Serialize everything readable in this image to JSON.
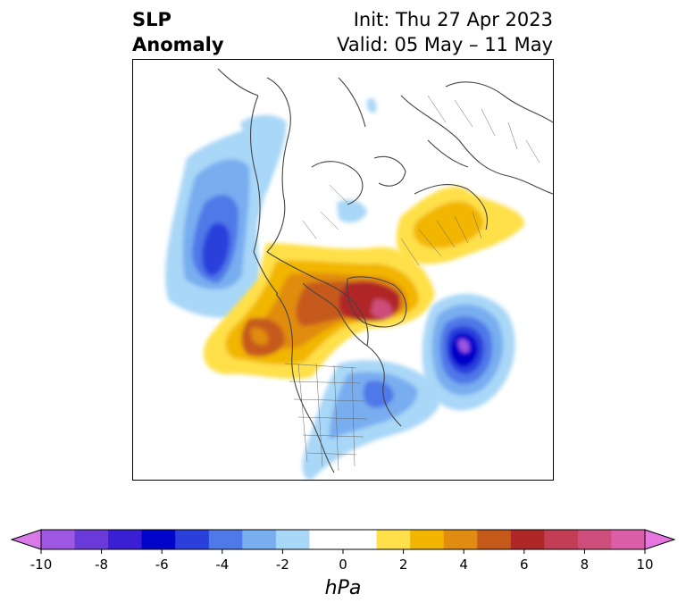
{
  "header": {
    "title_lines": [
      "SLP",
      "Anomaly"
    ],
    "init_text": "Init: Thu 27 Apr 2023",
    "valid_text": "Valid: 05 May – 11 May"
  },
  "colorbar": {
    "ticks": [
      "-10",
      "-8",
      "-6",
      "-4",
      "-2",
      "0",
      "2",
      "4",
      "6",
      "8",
      "10"
    ],
    "units": "hPa",
    "under_color": "#d97ae8",
    "over_color": "#e675df",
    "bin_colors": [
      "#9d57e2",
      "#6a3ad8",
      "#3a1fd4",
      "#0005c9",
      "#2a3fdb",
      "#4f78e8",
      "#78adf0",
      "#a9d7f7",
      "#ffffff",
      "#ffffff",
      "#ffe04a",
      "#f2b602",
      "#e08c10",
      "#c65a1a",
      "#b02727",
      "#c33d55",
      "#cd4e7a",
      "#db5fa8"
    ]
  },
  "map": {
    "projection": "north polar view",
    "positive_anomalies": [
      {
        "region": "northern Canada / Greenland",
        "peak_hpa": 7
      },
      {
        "region": "northeastern Pacific / Gulf of Alaska",
        "peak_hpa": 4
      },
      {
        "region": "Scandinavia / northern Europe",
        "peak_hpa": 2
      }
    ],
    "negative_anomalies": [
      {
        "region": "North Atlantic",
        "peak_hpa": -7
      },
      {
        "region": "Sea of Okhotsk / Kamchatka",
        "peak_hpa": -5
      },
      {
        "region": "eastern United States / western Atlantic",
        "peak_hpa": -4
      }
    ]
  }
}
